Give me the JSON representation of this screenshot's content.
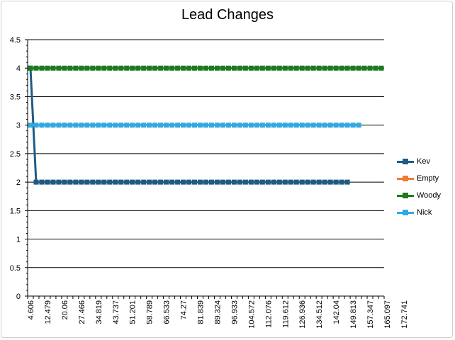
{
  "chart_data": {
    "type": "line",
    "title": "Lead Changes",
    "xlabel": "",
    "ylabel": "",
    "ylim": [
      0,
      4.5
    ],
    "yticks": [
      "0",
      "0.5",
      "1",
      "1.5",
      "2",
      "2.5",
      "3",
      "3.5",
      "4",
      "4.5"
    ],
    "x_tick_labels": [
      "4.606",
      "12.479",
      "20.06",
      "27.466",
      "34.819",
      "43.737",
      "51.201",
      "58.789",
      "66.533",
      "74.27",
      "81.839",
      "89.324",
      "96.933",
      "104.572",
      "112.076",
      "119.612",
      "126.936",
      "134.512",
      "142.04",
      "149.813",
      "157.347",
      "165.097",
      "172.741"
    ],
    "category_count": 63,
    "grid": true,
    "legend_position": "right",
    "series": [
      {
        "name": "Kev",
        "color": "#1f5b84",
        "start": 4,
        "first_change_index": 1,
        "level": 2,
        "last_index": 56
      },
      {
        "name": "Empty",
        "color": "#f07b34",
        "start": null,
        "level": null,
        "last_index": -1
      },
      {
        "name": "Woody",
        "color": "#1f7a1f",
        "start": 4,
        "level": 4,
        "last_index": 62
      },
      {
        "name": "Nick",
        "color": "#33a8e0",
        "start": 3,
        "level": 3,
        "last_index": 58
      }
    ]
  }
}
